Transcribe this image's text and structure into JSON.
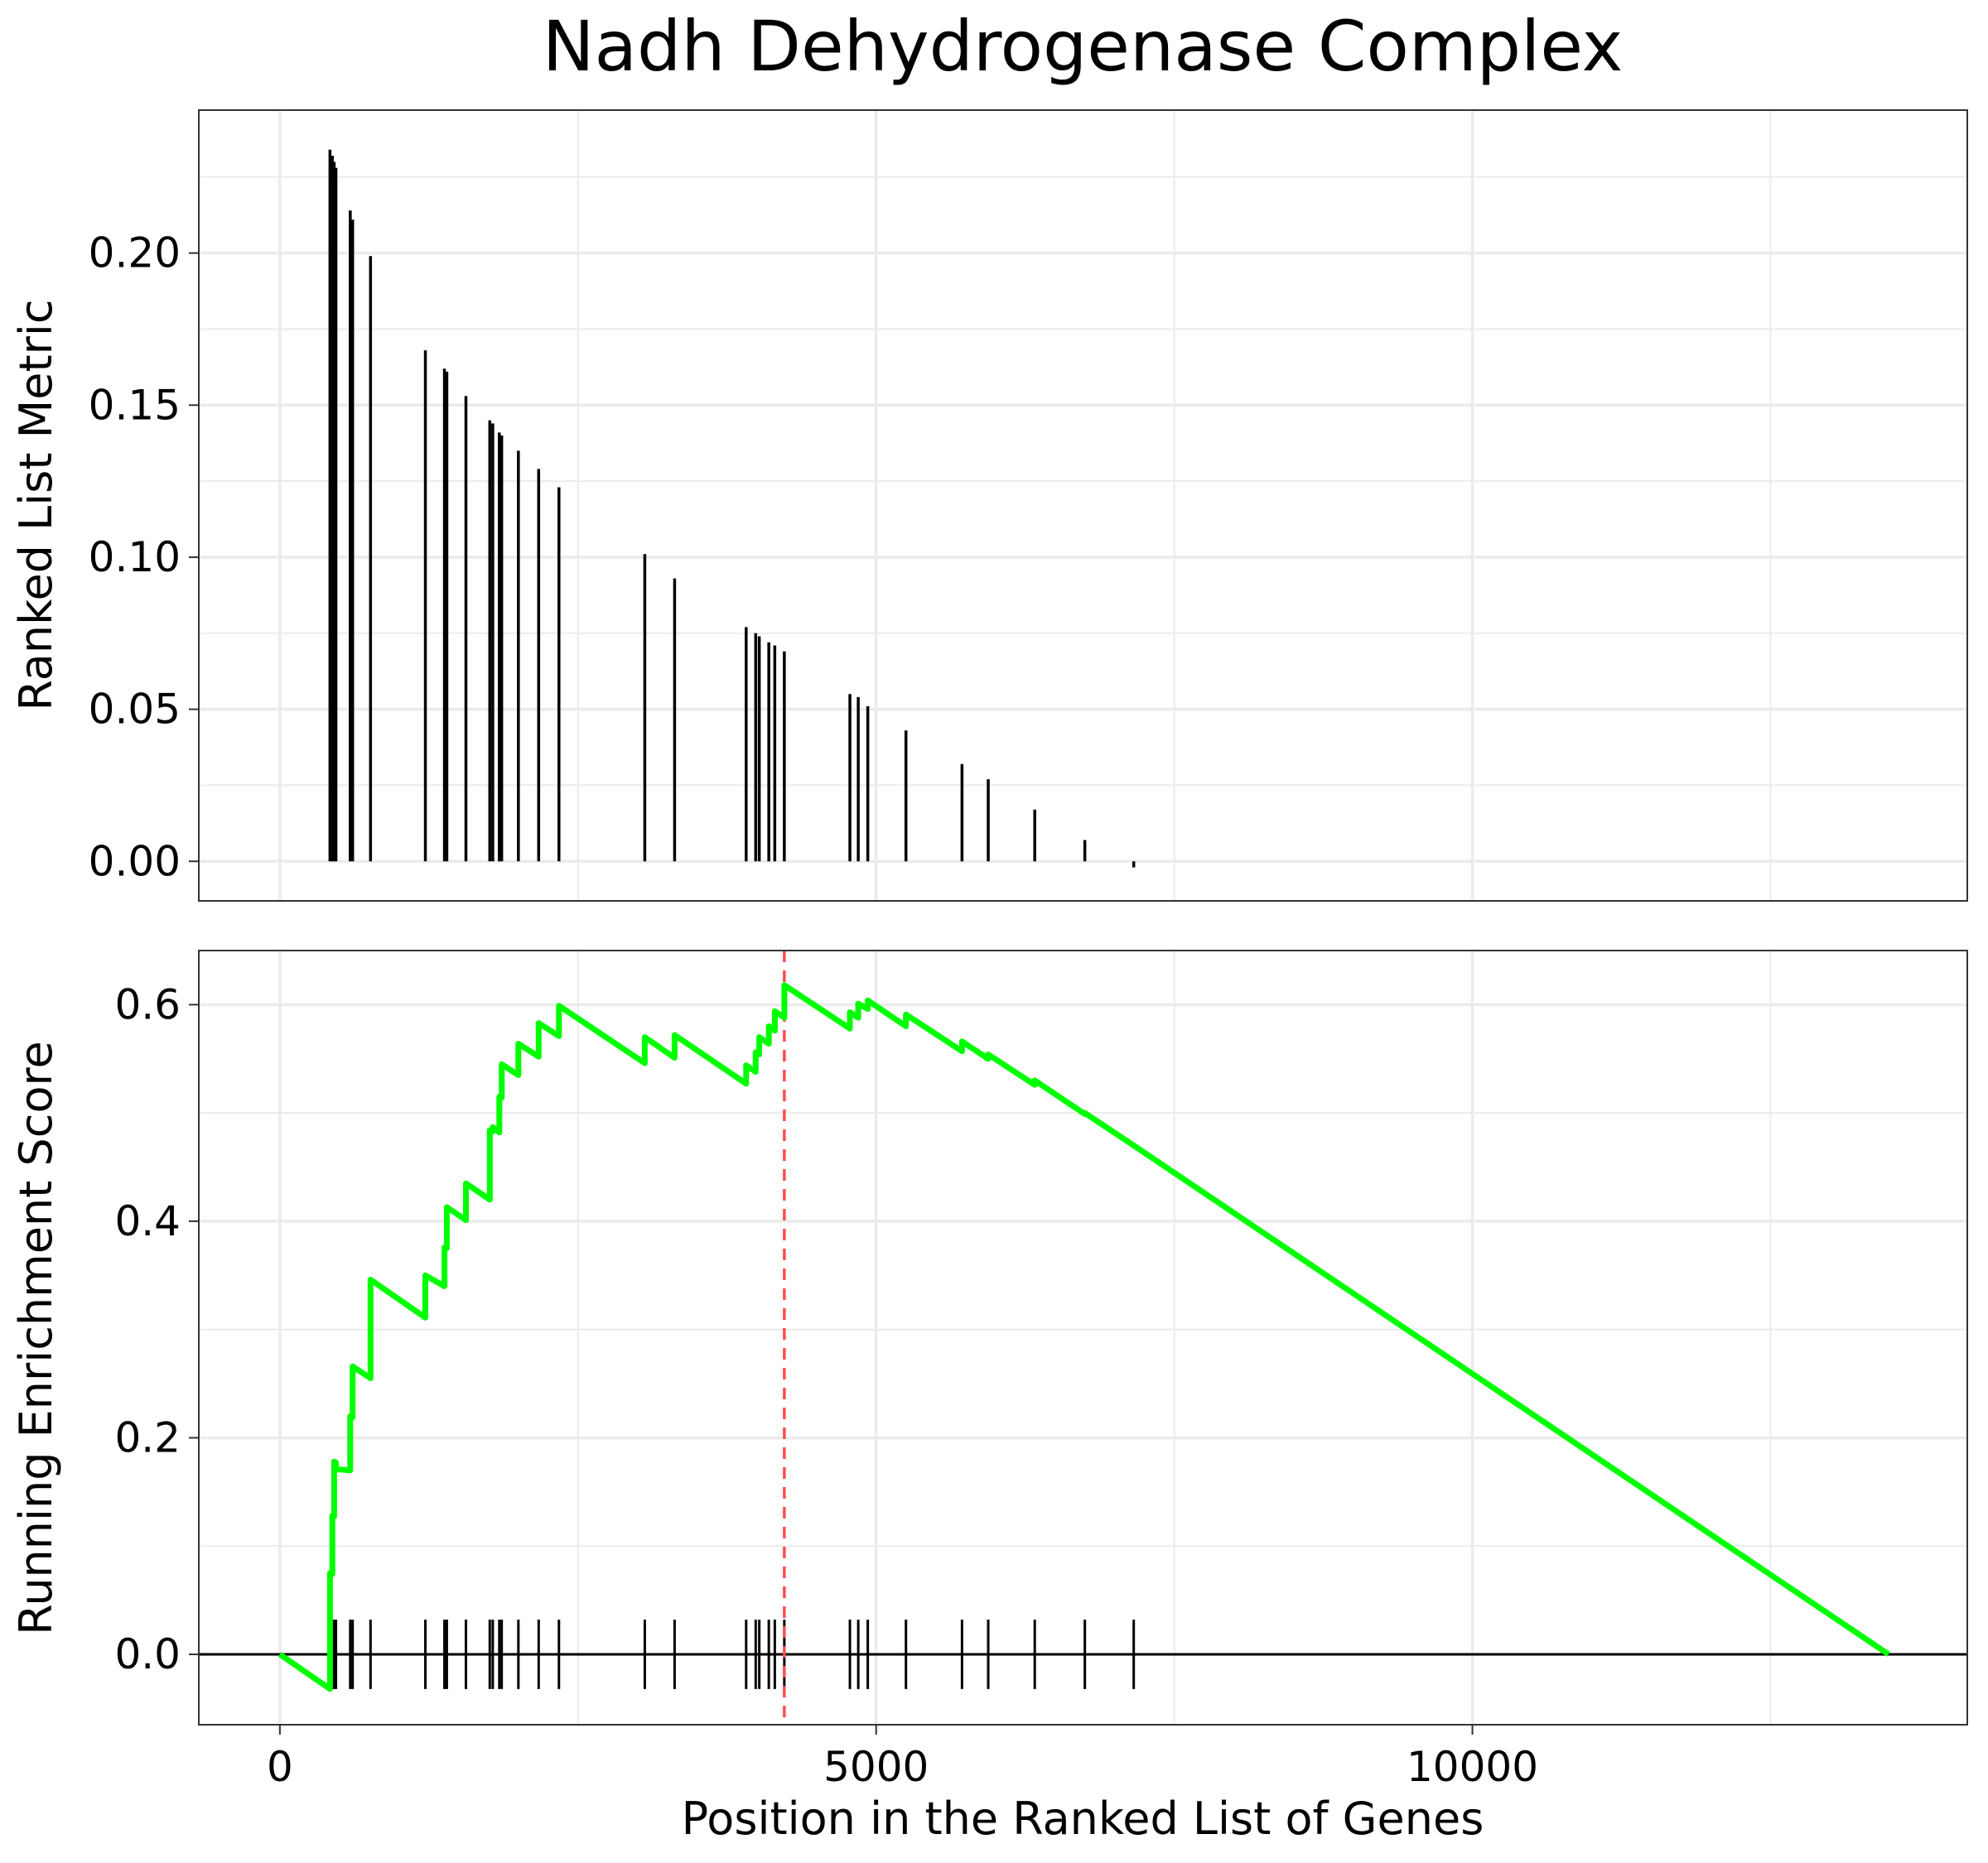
{
  "chart_data": {
    "type": "line",
    "title": "Nadh Dehydrogenase Complex",
    "xlabel": "Position in the Ranked List of Genes",
    "xlim": [
      -680,
      14150
    ],
    "xticks": [
      0,
      5000,
      10000
    ],
    "xtick_labels": [
      "0",
      "5000",
      "10000"
    ],
    "grid": true,
    "legend": "none",
    "colors": {
      "running_score": "#00ff00",
      "max_line": "#ff4d4d",
      "bars": "#000000",
      "gridline": "#ebebeb",
      "frame": "#333333"
    },
    "ranked_metric_panel": {
      "type": "bar",
      "ylabel": "Ranked List Metric",
      "ylim": [
        -0.013,
        0.247
      ],
      "yticks": [
        0.0,
        0.05,
        0.1,
        0.15,
        0.2
      ],
      "ytick_labels": [
        "0.00",
        "0.05",
        "0.10",
        "0.15",
        "0.20"
      ],
      "x": [
        420,
        440,
        455,
        470,
        590,
        610,
        760,
        1220,
        1380,
        1400,
        1560,
        1760,
        1785,
        1840,
        1860,
        2000,
        2170,
        2340,
        3060,
        3310,
        3910,
        3990,
        4020,
        4100,
        4150,
        4230,
        4780,
        4850,
        4930,
        5250,
        5720,
        5940,
        6330,
        6750,
        7160
      ],
      "values": [
        0.234,
        0.232,
        0.23,
        0.228,
        0.214,
        0.211,
        0.199,
        0.168,
        0.162,
        0.161,
        0.153,
        0.145,
        0.144,
        0.141,
        0.14,
        0.135,
        0.129,
        0.123,
        0.101,
        0.093,
        0.077,
        0.075,
        0.074,
        0.072,
        0.071,
        0.069,
        0.055,
        0.054,
        0.051,
        0.043,
        0.032,
        0.027,
        0.017,
        0.007,
        -0.002
      ]
    },
    "enrichment_panel": {
      "type": "line",
      "ylabel": "Running Enrichment Score",
      "ylim": [
        -0.065,
        0.65
      ],
      "yticks": [
        0.0,
        0.2,
        0.4,
        0.6
      ],
      "ytick_labels": [
        "0.0",
        "0.2",
        "0.4",
        "0.6"
      ],
      "series": [
        {
          "x": [
            0,
            420,
            420,
            440,
            440,
            455,
            455,
            470,
            470,
            590,
            590,
            610,
            610,
            760,
            760,
            1220,
            1220,
            1380,
            1380,
            1400,
            1400,
            1560,
            1560,
            1760,
            1760,
            1785,
            1785,
            1840,
            1840,
            1860,
            1860,
            2000,
            2000,
            2170,
            2170,
            2340,
            2340,
            3060,
            3060,
            3310,
            3310,
            3910,
            3910,
            3990,
            3990,
            4020,
            4020,
            4100,
            4100,
            4150,
            4150,
            4230,
            4230,
            4780,
            4780,
            4850,
            4850,
            4930,
            4930,
            5250,
            5250,
            5720,
            5720,
            5940,
            5940,
            6330,
            6330,
            6750,
            6750,
            7160,
            7160,
            13490
          ],
          "values": [
            0.0,
            -0.032,
            0.075,
            0.074,
            0.128,
            0.127,
            0.178,
            0.177,
            0.171,
            0.17,
            0.22,
            0.219,
            0.266,
            0.255,
            0.346,
            0.311,
            0.35,
            0.34,
            0.376,
            0.375,
            0.413,
            0.401,
            0.435,
            0.42,
            0.484,
            0.483,
            0.487,
            0.482,
            0.515,
            0.514,
            0.545,
            0.535,
            0.564,
            0.552,
            0.583,
            0.571,
            0.599,
            0.546,
            0.57,
            0.551,
            0.572,
            0.527,
            0.544,
            0.538,
            0.556,
            0.554,
            0.57,
            0.564,
            0.58,
            0.576,
            0.594,
            0.588,
            0.618,
            0.578,
            0.593,
            0.588,
            0.601,
            0.596,
            0.604,
            0.58,
            0.591,
            0.557,
            0.566,
            0.55,
            0.554,
            0.526,
            0.53,
            0.499,
            0.5,
            0.47,
            0.47,
            0.0
          ]
        }
      ],
      "max_position": 4230,
      "hit_ticks_ylim": [
        -0.032,
        0.032
      ]
    }
  }
}
